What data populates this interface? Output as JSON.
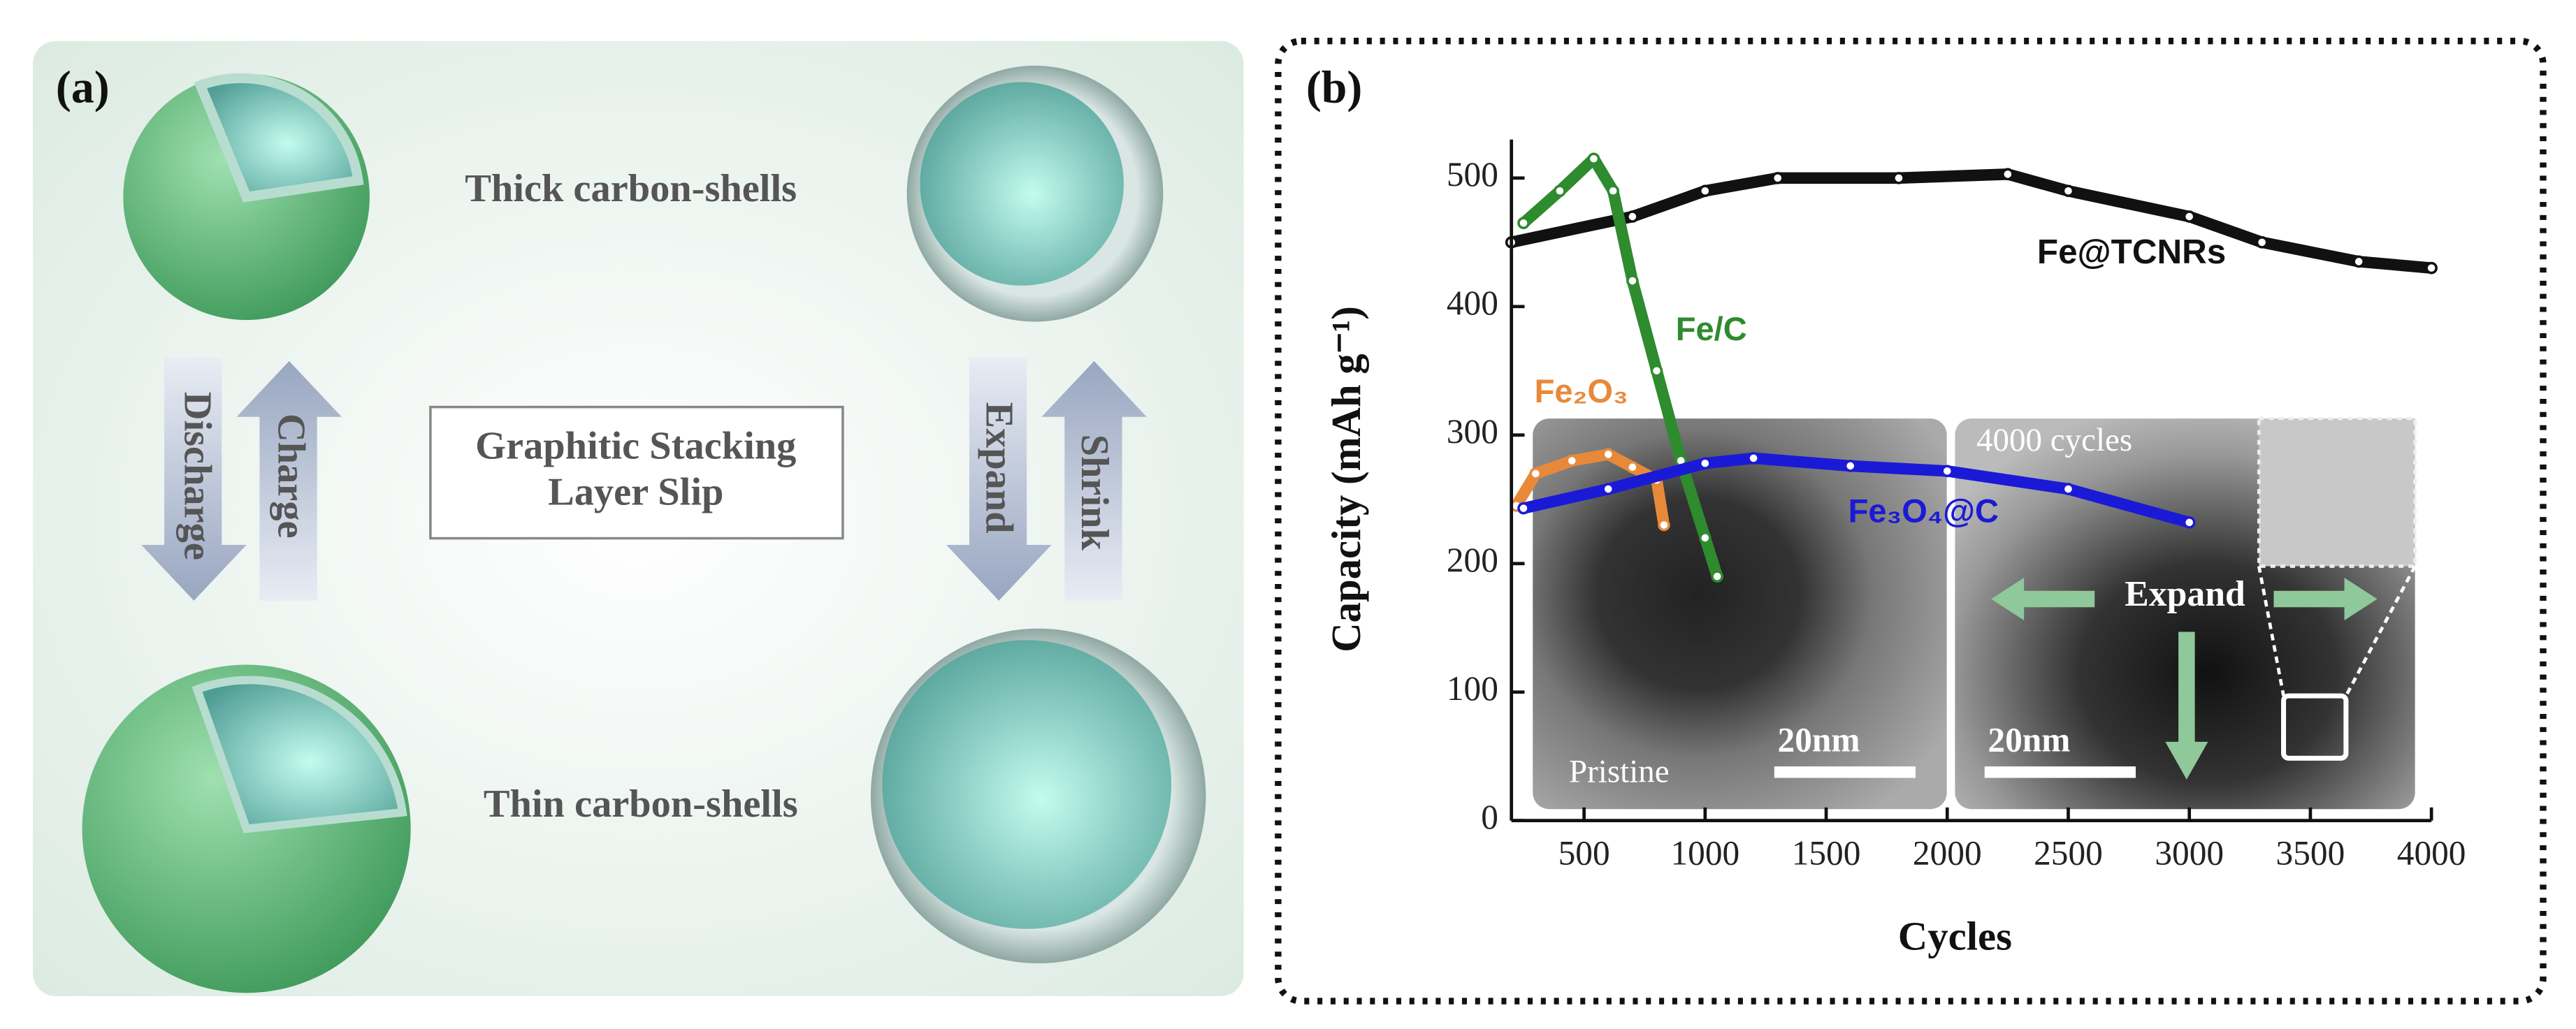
{
  "panel_a": {
    "label": "(a)",
    "thick": "Thick carbon-shells",
    "thin": "Thin carbon-shells",
    "box_lines": [
      "Graphitic Stacking",
      "Layer Slip"
    ],
    "left_arrows": [
      "Discharge",
      "Charge"
    ],
    "right_arrows": [
      "Expand",
      "Shrink"
    ]
  },
  "chart_data": {
    "type": "line",
    "panel_label": "(b)",
    "xlabel": "Cycles",
    "ylabel": "Capacity (mAh g⁻¹)",
    "xlim": [
      200,
      4000
    ],
    "ylim": [
      0,
      530
    ],
    "xticks": [
      500,
      1000,
      1500,
      2000,
      2500,
      3000,
      3500,
      4000
    ],
    "yticks": [
      0,
      100,
      200,
      300,
      400,
      500
    ],
    "annotations": [
      "4000 cycles",
      "Pristine",
      "20nm",
      "20nm",
      "Expand"
    ],
    "series": [
      {
        "name": "Fe@TCNRs",
        "color": "#111111",
        "x": [
          200,
          700,
          1000,
          1300,
          1800,
          2250,
          2500,
          3000,
          3300,
          3700,
          4000
        ],
        "values": [
          450,
          470,
          490,
          500,
          500,
          503,
          490,
          470,
          450,
          435,
          430
        ]
      },
      {
        "name": "Fe/C",
        "color": "#2e8b2e",
        "x": [
          250,
          400,
          540,
          620,
          700,
          800,
          900,
          1000,
          1050
        ],
        "values": [
          465,
          490,
          515,
          490,
          420,
          350,
          280,
          220,
          190
        ]
      },
      {
        "name": "Fe₂O₃",
        "color": "#e8893a",
        "x": [
          220,
          300,
          450,
          600,
          700,
          800,
          830
        ],
        "values": [
          245,
          270,
          280,
          285,
          275,
          265,
          230
        ]
      },
      {
        "name": "Fe₃O₄@C",
        "color": "#1a1ad6",
        "x": [
          250,
          600,
          1000,
          1200,
          1600,
          2000,
          2500,
          3000
        ],
        "values": [
          243,
          258,
          278,
          282,
          276,
          272,
          258,
          232
        ]
      }
    ]
  }
}
